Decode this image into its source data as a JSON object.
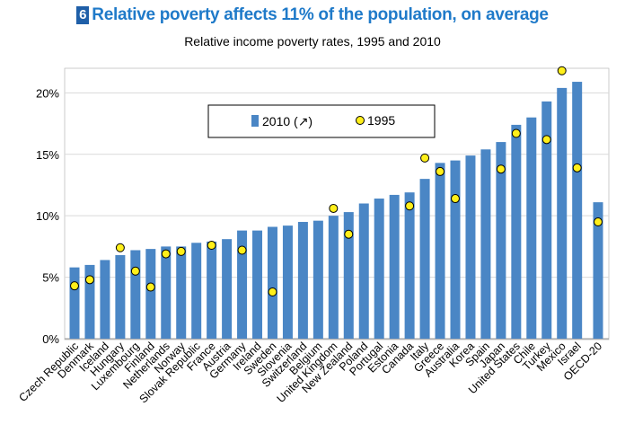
{
  "header": {
    "figure_number": "6",
    "title": "Relative poverty affects 11% of the population, on average",
    "subtitle": "Relative income poverty rates, 1995 and 2010"
  },
  "colors": {
    "bar": "#4a86c5",
    "marker_fill": "#ffef1a",
    "marker_stroke": "#000000",
    "grid": "#d9d9d9",
    "title": "#1f7ac9",
    "badge": "#1f5fa8"
  },
  "chart_data": {
    "type": "bar",
    "title": "Relative income poverty rates, 1995 and 2010",
    "xlabel": "",
    "ylabel": "",
    "ylim": [
      0,
      22
    ],
    "yticks": [
      0,
      5,
      10,
      15,
      20
    ],
    "ytick_labels": [
      "0%",
      "5%",
      "10%",
      "15%",
      "20%"
    ],
    "grid": true,
    "legend_position": "top-left",
    "categories": [
      "Czech Republic",
      "Denmark",
      "Iceland",
      "Hungary",
      "Luxembourg",
      "Finland",
      "Netherlands",
      "Norway",
      "Slovak Republic",
      "France",
      "Austria",
      "Germany",
      "Ireland",
      "Sweden",
      "Slovenia",
      "Switzerland",
      "Belgium",
      "United Kingdom",
      "New Zealand",
      "Poland",
      "Portugal",
      "Estonia",
      "Canada",
      "Italy",
      "Greece",
      "Australia",
      "Korea",
      "Spain",
      "Japan",
      "United States",
      "Chile",
      "Turkey",
      "Mexico",
      "Israel",
      "OECD-20"
    ],
    "series": [
      {
        "name": "2010 (↗)",
        "kind": "bar",
        "values": [
          5.8,
          6.0,
          6.4,
          6.8,
          7.2,
          7.3,
          7.5,
          7.5,
          7.8,
          7.9,
          8.1,
          8.8,
          8.8,
          9.1,
          9.2,
          9.5,
          9.6,
          10.0,
          10.3,
          11.0,
          11.4,
          11.7,
          11.9,
          13.0,
          14.3,
          14.5,
          14.9,
          15.4,
          16.0,
          17.4,
          18.0,
          19.3,
          20.4,
          20.9,
          11.1
        ]
      },
      {
        "name": "1995",
        "kind": "marker",
        "values": [
          4.3,
          4.8,
          null,
          7.4,
          5.5,
          4.2,
          6.9,
          7.1,
          null,
          7.6,
          null,
          7.2,
          null,
          3.8,
          null,
          null,
          null,
          10.6,
          8.5,
          null,
          null,
          null,
          10.8,
          14.7,
          13.6,
          11.4,
          null,
          null,
          13.8,
          16.7,
          null,
          16.2,
          21.8,
          13.9,
          9.5
        ]
      }
    ]
  }
}
